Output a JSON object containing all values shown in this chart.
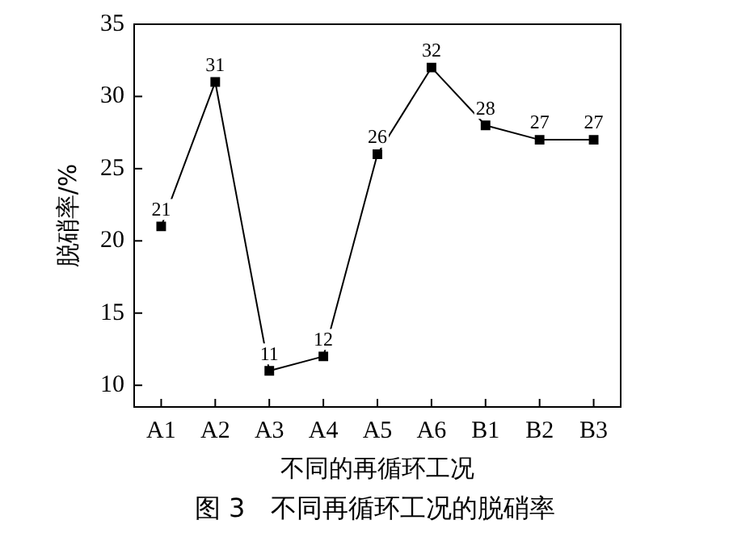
{
  "chart_data": {
    "type": "line",
    "xlabel": "不同的再循环工况",
    "ylabel": "脱硝率/%",
    "categories": [
      "A1",
      "A2",
      "A3",
      "A4",
      "A5",
      "A6",
      "B1",
      "B2",
      "B3"
    ],
    "series": [
      {
        "color": "#000000",
        "values": [
          21,
          31,
          11,
          12,
          26,
          32,
          28,
          27,
          27
        ]
      }
    ],
    "ylim": [
      8.5,
      35
    ],
    "yticks": [
      10,
      15,
      20,
      25,
      30,
      35
    ],
    "grid": false,
    "legend": false,
    "marker": "square",
    "line_style": "solid",
    "data_labels": true,
    "annotations": [
      "图 3　不同再循环工况的脱硝率"
    ]
  }
}
